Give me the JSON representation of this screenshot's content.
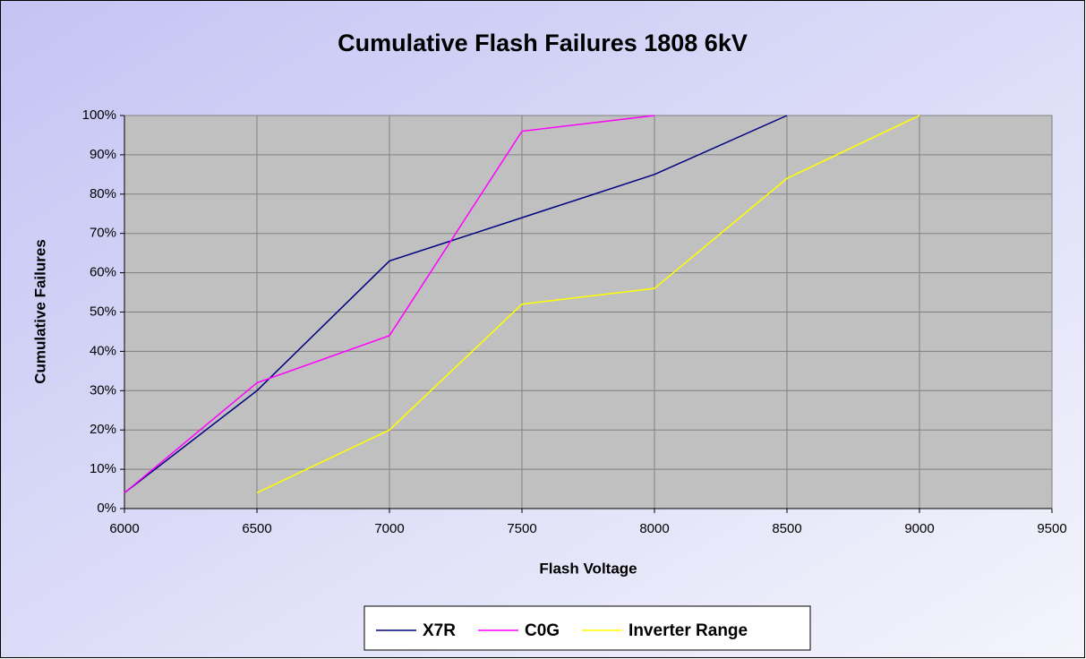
{
  "chart_data": {
    "type": "line",
    "title": "Cumulative Flash Failures 1808 6kV",
    "x_label": "Flash Voltage",
    "y_label": "Cumulative Failures",
    "x": [
      6000,
      6500,
      7000,
      7500,
      8000,
      8500,
      9000
    ],
    "series": [
      {
        "name": "X7R",
        "color": "#000080",
        "values": [
          4,
          30,
          63,
          74,
          85,
          100,
          null
        ]
      },
      {
        "name": "C0G",
        "color": "#ff00ff",
        "values": [
          4,
          32,
          44,
          96,
          100,
          null,
          null
        ]
      },
      {
        "name": "Inverter Range",
        "color": "#ffff00",
        "values": [
          null,
          4,
          20,
          52,
          56,
          84,
          100
        ]
      }
    ],
    "xlim": [
      6000,
      9500
    ],
    "xticks": [
      6000,
      6500,
      7000,
      7500,
      8000,
      8500,
      9000,
      9500
    ],
    "ylim": [
      0,
      100
    ],
    "yticks": [
      {
        "value": 0,
        "label": "0%"
      },
      {
        "value": 10,
        "label": "10%"
      },
      {
        "value": 20,
        "label": "20%"
      },
      {
        "value": 30,
        "label": "30%"
      },
      {
        "value": 40,
        "label": "40%"
      },
      {
        "value": 50,
        "label": "50%"
      },
      {
        "value": 60,
        "label": "60%"
      },
      {
        "value": 70,
        "label": "70%"
      },
      {
        "value": 80,
        "label": "80%"
      },
      {
        "value": 90,
        "label": "90%"
      },
      {
        "value": 100,
        "label": "100%"
      }
    ],
    "grid": true,
    "legend": "bottom"
  }
}
